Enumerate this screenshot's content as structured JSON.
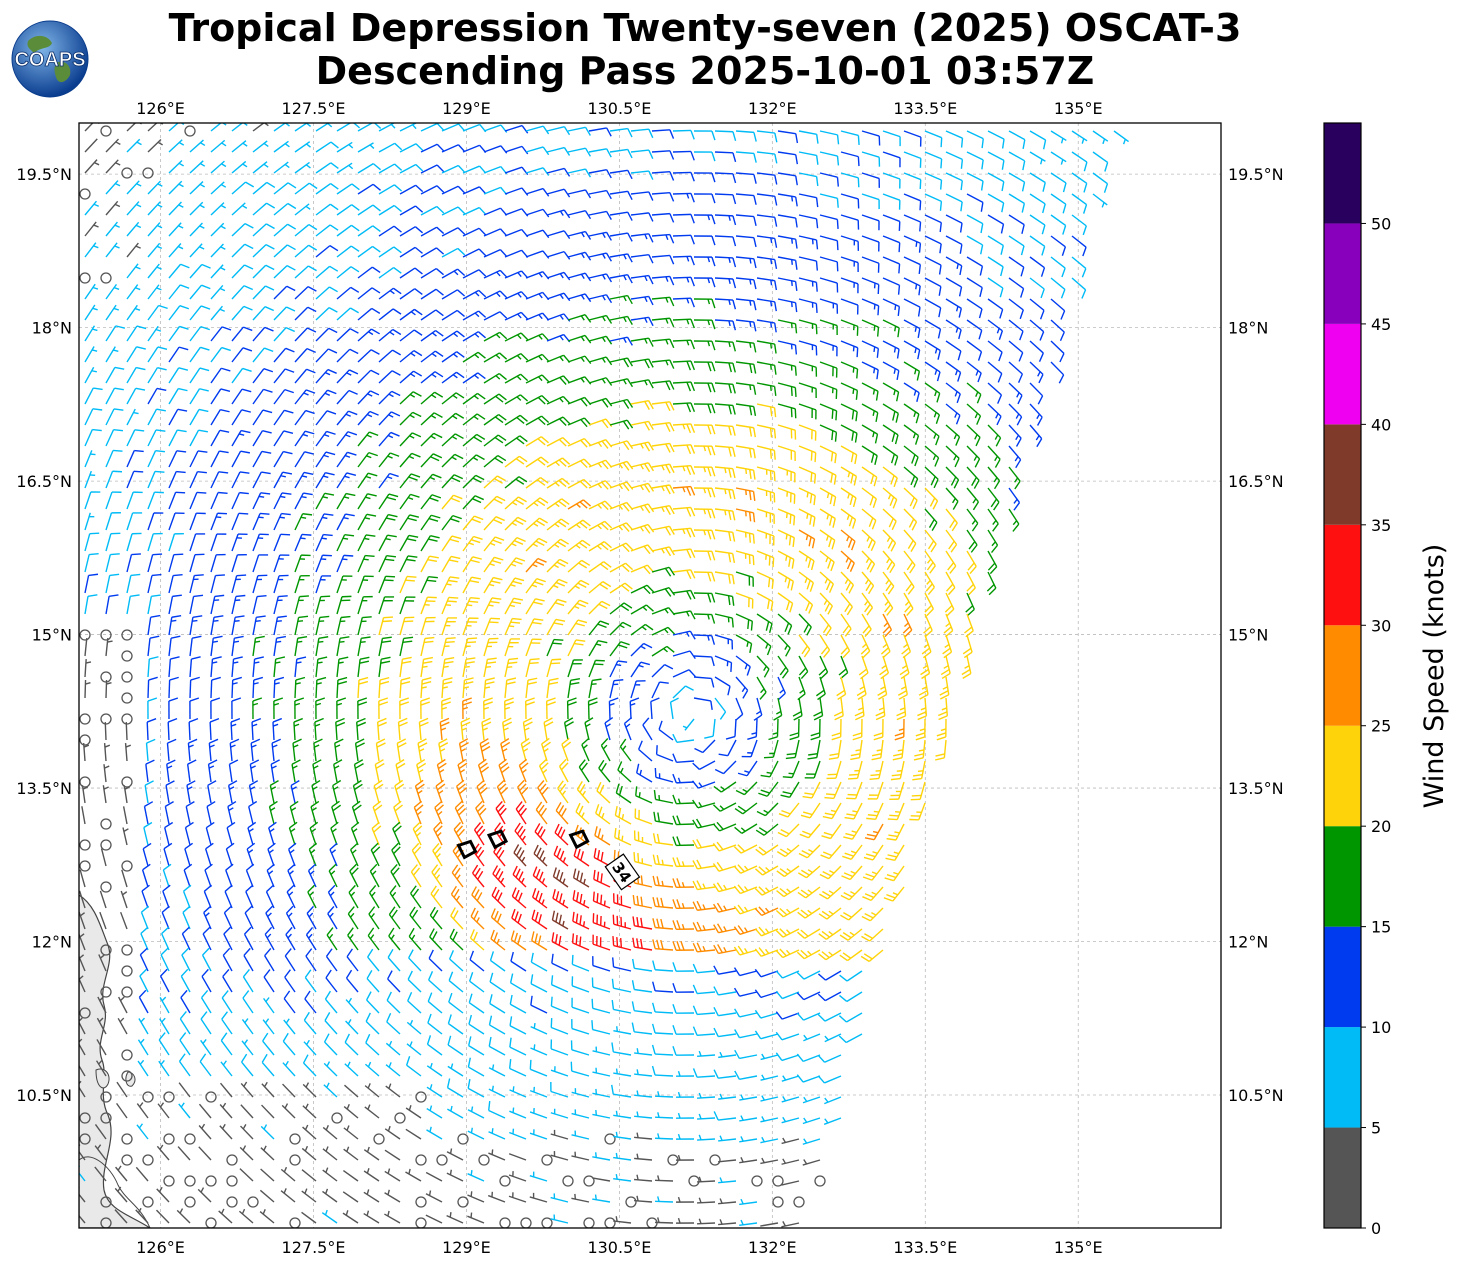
{
  "header": {
    "logo_text": "COAPS",
    "title_line1": "Tropical Depression Twenty-seven (2025) OSCAT-3",
    "title_line2": "Descending Pass 2025-10-01 03:57Z"
  },
  "chart_data": {
    "type": "wind-barb-map",
    "title": "Tropical Depression Twenty-seven (2025) OSCAT-3 Descending Pass 2025-10-01 03:57Z",
    "lon_range": [
      125.2,
      136.4
    ],
    "lat_range": [
      9.2,
      20.0
    ],
    "x_ticks": [
      126,
      127.5,
      129,
      130.5,
      132,
      133.5,
      135
    ],
    "x_tick_labels": [
      "126°E",
      "127.5°E",
      "129°E",
      "130.5°E",
      "132°E",
      "133.5°E",
      "135°E"
    ],
    "y_ticks": [
      10.5,
      12,
      13.5,
      15,
      16.5,
      18,
      19.5
    ],
    "y_tick_labels": [
      "10.5°N",
      "12°N",
      "13.5°N",
      "15°N",
      "16.5°N",
      "18°N",
      "19.5°N"
    ],
    "grid": true,
    "storm_center": {
      "lon": 131.2,
      "lat": 14.2
    },
    "wind_contour_label": "34",
    "contour_34kt_points": [
      {
        "lon": 129.0,
        "lat": 12.9
      },
      {
        "lon": 129.3,
        "lat": 13.0
      },
      {
        "lon": 130.1,
        "lat": 13.0
      },
      {
        "lon": 130.5,
        "lat": 12.7
      }
    ],
    "colorbar": {
      "label": "Wind Speed (knots)",
      "boundaries": [
        0,
        5,
        10,
        15,
        20,
        25,
        30,
        35,
        40,
        45,
        50,
        55
      ],
      "tick_labels": [
        "0",
        "5",
        "10",
        "15",
        "20",
        "25",
        "30",
        "35",
        "40",
        "45",
        "50"
      ],
      "colors": [
        "#555555",
        "#00bbf6",
        "#003bf0",
        "#009600",
        "#ffd30a",
        "#ff8c00",
        "#ff1010",
        "#803a2a",
        "#f000f0",
        "#8800bb",
        "#2a005f"
      ]
    },
    "barb_colors_used": {
      "calm": "#555555",
      "light": "#00bbf6",
      "moderate": "#003bf0",
      "fresh": "#009600",
      "strong": "#ffd30a",
      "gale": "#ff8c00",
      "storm": "#ff1010",
      "severe": "#803a2a"
    }
  }
}
